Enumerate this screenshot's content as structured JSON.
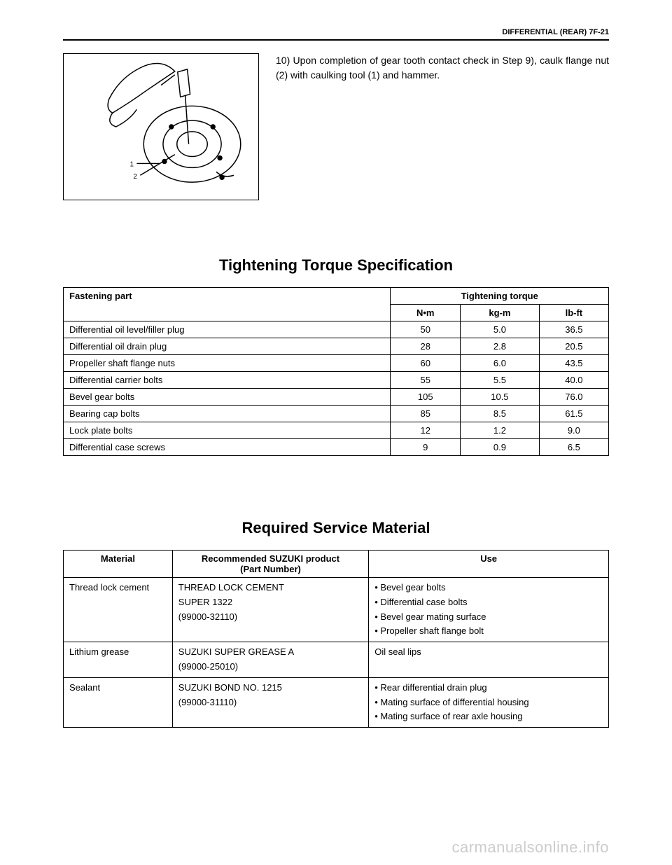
{
  "header": "DIFFERENTIAL (REAR) 7F-21",
  "step": {
    "num": "10)",
    "text": "Upon completion of gear tooth contact check in Step 9), caulk flange nut (2) with caulking tool (1) and hammer."
  },
  "torque_section": {
    "title": "Tightening Torque Specification",
    "col_part": "Fastening part",
    "col_group": "Tightening torque",
    "col_nm": "N•m",
    "col_kgm": "kg-m",
    "col_lbft": "lb-ft",
    "rows": [
      {
        "part": "Differential oil level/filler plug",
        "nm": "50",
        "kgm": "5.0",
        "lbft": "36.5"
      },
      {
        "part": "Differential oil drain plug",
        "nm": "28",
        "kgm": "2.8",
        "lbft": "20.5"
      },
      {
        "part": "Propeller shaft flange nuts",
        "nm": "60",
        "kgm": "6.0",
        "lbft": "43.5"
      },
      {
        "part": "Differential carrier bolts",
        "nm": "55",
        "kgm": "5.5",
        "lbft": "40.0"
      },
      {
        "part": "Bevel gear bolts",
        "nm": "105",
        "kgm": "10.5",
        "lbft": "76.0"
      },
      {
        "part": "Bearing cap bolts",
        "nm": "85",
        "kgm": "8.5",
        "lbft": "61.5"
      },
      {
        "part": "Lock plate bolts",
        "nm": "12",
        "kgm": "1.2",
        "lbft": "9.0"
      },
      {
        "part": "Differential case screws",
        "nm": "9",
        "kgm": "0.9",
        "lbft": "6.5"
      }
    ]
  },
  "material_section": {
    "title": "Required Service Material",
    "col_mat": "Material",
    "col_prod": "Recommended SUZUKI product\n(Part Number)",
    "col_prod_l1": "Recommended SUZUKI product",
    "col_prod_l2": "(Part Number)",
    "col_use": "Use",
    "rows": [
      {
        "material": "Thread lock cement",
        "product_l1": "THREAD LOCK CEMENT",
        "product_l2": "SUPER 1322",
        "product_l3": "(99000-32110)",
        "uses": [
          "Bevel gear bolts",
          "Differential case bolts",
          "Bevel gear mating surface",
          "Propeller shaft flange bolt"
        ]
      },
      {
        "material": "Lithium grease",
        "product_l1": "SUZUKI SUPER GREASE A",
        "product_l2": "(99000-25010)",
        "product_l3": "",
        "uses_plain": "Oil seal lips"
      },
      {
        "material": "Sealant",
        "product_l1": "SUZUKI BOND NO. 1215",
        "product_l2": "(99000-31110)",
        "product_l3": "",
        "uses": [
          "Rear differential drain plug",
          "Mating surface of differential housing",
          "Mating surface of rear axle housing"
        ]
      }
    ]
  },
  "watermark": "carmanualsonline.info"
}
